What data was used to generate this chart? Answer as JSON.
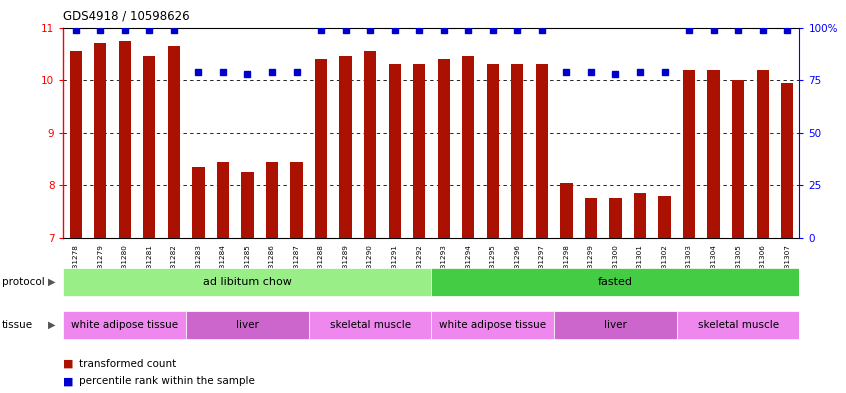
{
  "title": "GDS4918 / 10598626",
  "samples": [
    "GSM1131278",
    "GSM1131279",
    "GSM1131280",
    "GSM1131281",
    "GSM1131282",
    "GSM1131283",
    "GSM1131284",
    "GSM1131285",
    "GSM1131286",
    "GSM1131287",
    "GSM1131288",
    "GSM1131289",
    "GSM1131290",
    "GSM1131291",
    "GSM1131292",
    "GSM1131293",
    "GSM1131294",
    "GSM1131295",
    "GSM1131296",
    "GSM1131297",
    "GSM1131298",
    "GSM1131299",
    "GSM1131300",
    "GSM1131301",
    "GSM1131302",
    "GSM1131303",
    "GSM1131304",
    "GSM1131305",
    "GSM1131306",
    "GSM1131307"
  ],
  "bar_values": [
    10.55,
    10.7,
    10.75,
    10.45,
    10.65,
    8.35,
    8.45,
    8.25,
    8.45,
    8.45,
    10.4,
    10.45,
    10.55,
    10.3,
    10.3,
    10.4,
    10.45,
    10.3,
    10.3,
    10.3,
    8.05,
    7.75,
    7.75,
    7.85,
    7.8,
    10.2,
    10.2,
    10.0,
    10.2,
    9.95
  ],
  "percentile_values": [
    99,
    99,
    99,
    99,
    99,
    79,
    79,
    78,
    79,
    79,
    99,
    99,
    99,
    99,
    99,
    99,
    99,
    99,
    99,
    99,
    79,
    79,
    78,
    79,
    79,
    99,
    99,
    99,
    99,
    99
  ],
  "bar_color": "#aa1100",
  "percentile_color": "#0000cc",
  "ylim_left": [
    7,
    11
  ],
  "ylim_right": [
    0,
    100
  ],
  "yticks_left": [
    7,
    8,
    9,
    10,
    11
  ],
  "yticks_right": [
    0,
    25,
    50,
    75,
    100
  ],
  "ytick_labels_right": [
    "0",
    "25",
    "50",
    "75",
    "100%"
  ],
  "grid_values": [
    8,
    9,
    10
  ],
  "protocol_labels": [
    {
      "text": "ad libitum chow",
      "start": 0,
      "end": 14,
      "color": "#99ee88"
    },
    {
      "text": "fasted",
      "start": 15,
      "end": 29,
      "color": "#44cc44"
    }
  ],
  "tissue_labels": [
    {
      "text": "white adipose tissue",
      "start": 0,
      "end": 4,
      "color": "#ee88ee"
    },
    {
      "text": "liver",
      "start": 5,
      "end": 9,
      "color": "#cc66cc"
    },
    {
      "text": "skeletal muscle",
      "start": 10,
      "end": 14,
      "color": "#ee88ee"
    },
    {
      "text": "white adipose tissue",
      "start": 15,
      "end": 19,
      "color": "#ee88ee"
    },
    {
      "text": "liver",
      "start": 20,
      "end": 24,
      "color": "#cc66cc"
    },
    {
      "text": "skeletal muscle",
      "start": 25,
      "end": 29,
      "color": "#ee88ee"
    }
  ],
  "legend_bar_label": "transformed count",
  "legend_dot_label": "percentile rank within the sample",
  "bar_width": 0.5,
  "percentile_marker_size": 5,
  "bg_color": "#ffffff"
}
